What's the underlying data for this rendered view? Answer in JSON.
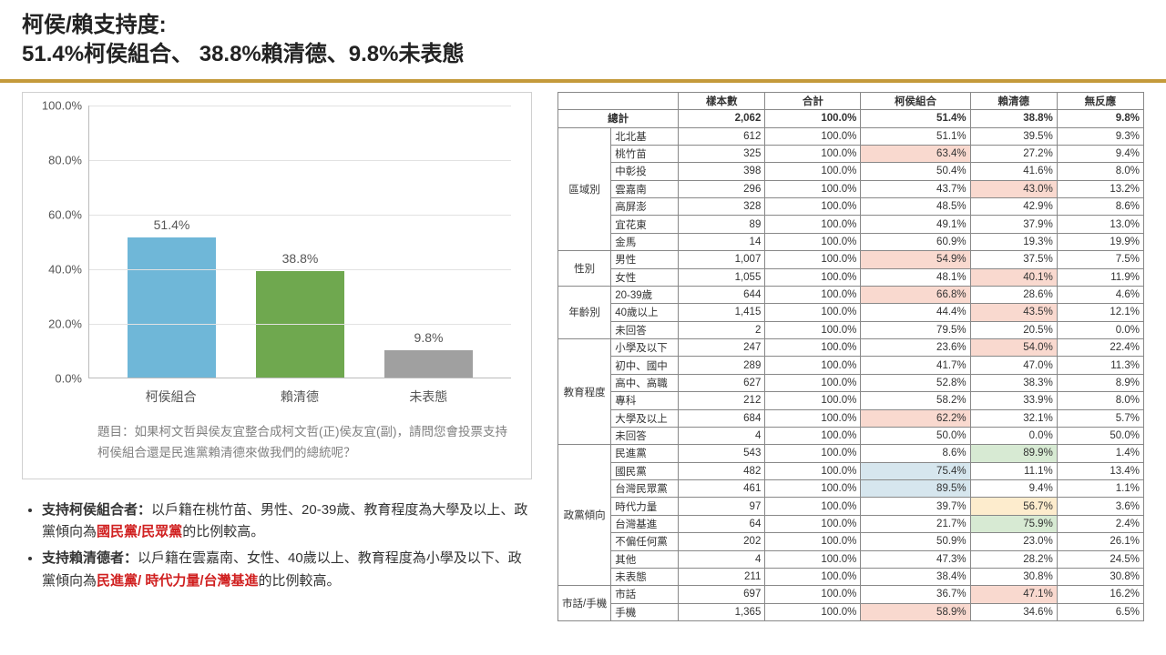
{
  "title_line1": "柯侯/賴支持度:",
  "title_line2": "51.4%柯侯組合、 38.8%賴清德、9.8%未表態",
  "chart": {
    "type": "bar",
    "ymax": 100,
    "ytick_step": 20,
    "ytick_suffix": ".0%",
    "categories": [
      "柯侯組合",
      "賴清德",
      "未表態"
    ],
    "values": [
      51.4,
      38.8,
      9.8
    ],
    "value_labels": [
      "51.4%",
      "38.8%",
      "9.8%"
    ],
    "bar_colors": [
      "#6fb7d8",
      "#6fa84f",
      "#a0a0a0"
    ],
    "grid_color": "#e2e2e2",
    "axis_color": "#bbbbbb",
    "label_color": "#555555"
  },
  "question": {
    "prefix": "題目：",
    "text": "如果柯文哲與侯友宜整合成柯文哲(正)侯友宜(副)，請問您會投票支持柯侯組合還是民進黨賴清德來做我們的總統呢？"
  },
  "bullets": [
    {
      "lead": "支持柯侯組合者：",
      "pre": "以戶籍在桃竹苗、男性、20-39歲、教育程度為大學及以上、政黨傾向為",
      "highlight": "國民黨/民眾黨",
      "post": "的比例較高。"
    },
    {
      "lead": "支持賴清德者：",
      "pre": "以戶籍在雲嘉南、女性、40歲以上、教育程度為小學及以下、政黨傾向為",
      "highlight": "民進黨/ 時代力量/台灣基進",
      "post": "的比例較高。"
    }
  ],
  "table": {
    "headers": [
      "",
      "",
      "樣本數",
      "合計",
      "柯侯組合",
      "賴清德",
      "無反應"
    ],
    "total_label": "總計",
    "highlight_colors": {
      "pink": "#f9d9cf",
      "blue": "#d6e6ee",
      "green": "#d7ead3",
      "yellow": "#fdeccd"
    },
    "total_row": {
      "n": "2,062",
      "tot": "100.0%",
      "a": "51.4%",
      "b": "38.8%",
      "c": "9.8%"
    },
    "groups": [
      {
        "name": "區域別",
        "rows": [
          {
            "lbl": "北北基",
            "n": "612",
            "tot": "100.0%",
            "a": "51.1%",
            "b": "39.5%",
            "c": "9.3%"
          },
          {
            "lbl": "桃竹苗",
            "n": "325",
            "tot": "100.0%",
            "a": "63.4%",
            "ah": "pink",
            "b": "27.2%",
            "c": "9.4%"
          },
          {
            "lbl": "中彰投",
            "n": "398",
            "tot": "100.0%",
            "a": "50.4%",
            "b": "41.6%",
            "c": "8.0%"
          },
          {
            "lbl": "雲嘉南",
            "n": "296",
            "tot": "100.0%",
            "a": "43.7%",
            "b": "43.0%",
            "bh": "pink",
            "c": "13.2%"
          },
          {
            "lbl": "高屏澎",
            "n": "328",
            "tot": "100.0%",
            "a": "48.5%",
            "b": "42.9%",
            "c": "8.6%"
          },
          {
            "lbl": "宜花東",
            "n": "89",
            "tot": "100.0%",
            "a": "49.1%",
            "b": "37.9%",
            "c": "13.0%"
          },
          {
            "lbl": "金馬",
            "n": "14",
            "tot": "100.0%",
            "a": "60.9%",
            "b": "19.3%",
            "c": "19.9%"
          }
        ]
      },
      {
        "name": "性別",
        "rows": [
          {
            "lbl": "男性",
            "n": "1,007",
            "tot": "100.0%",
            "a": "54.9%",
            "ah": "pink",
            "b": "37.5%",
            "c": "7.5%"
          },
          {
            "lbl": "女性",
            "n": "1,055",
            "tot": "100.0%",
            "a": "48.1%",
            "b": "40.1%",
            "bh": "pink",
            "c": "11.9%"
          }
        ]
      },
      {
        "name": "年齡別",
        "rows": [
          {
            "lbl": "20-39歲",
            "n": "644",
            "tot": "100.0%",
            "a": "66.8%",
            "ah": "pink",
            "b": "28.6%",
            "c": "4.6%"
          },
          {
            "lbl": "40歲以上",
            "n": "1,415",
            "tot": "100.0%",
            "a": "44.4%",
            "b": "43.5%",
            "bh": "pink",
            "c": "12.1%"
          },
          {
            "lbl": "未回答",
            "n": "2",
            "tot": "100.0%",
            "a": "79.5%",
            "b": "20.5%",
            "c": "0.0%"
          }
        ]
      },
      {
        "name": "教育程度",
        "rows": [
          {
            "lbl": "小學及以下",
            "n": "247",
            "tot": "100.0%",
            "a": "23.6%",
            "b": "54.0%",
            "bh": "pink",
            "c": "22.4%"
          },
          {
            "lbl": "初中、國中",
            "n": "289",
            "tot": "100.0%",
            "a": "41.7%",
            "b": "47.0%",
            "c": "11.3%"
          },
          {
            "lbl": "高中、高職",
            "n": "627",
            "tot": "100.0%",
            "a": "52.8%",
            "b": "38.3%",
            "c": "8.9%"
          },
          {
            "lbl": "專科",
            "n": "212",
            "tot": "100.0%",
            "a": "58.2%",
            "b": "33.9%",
            "c": "8.0%"
          },
          {
            "lbl": "大學及以上",
            "n": "684",
            "tot": "100.0%",
            "a": "62.2%",
            "ah": "pink",
            "b": "32.1%",
            "c": "5.7%"
          },
          {
            "lbl": "未回答",
            "n": "4",
            "tot": "100.0%",
            "a": "50.0%",
            "b": "0.0%",
            "c": "50.0%"
          }
        ]
      },
      {
        "name": "政黨傾向",
        "rows": [
          {
            "lbl": "民進黨",
            "n": "543",
            "tot": "100.0%",
            "a": "8.6%",
            "b": "89.9%",
            "bh": "green",
            "c": "1.4%"
          },
          {
            "lbl": "國民黨",
            "n": "482",
            "tot": "100.0%",
            "a": "75.4%",
            "ah": "blue",
            "b": "11.1%",
            "c": "13.4%"
          },
          {
            "lbl": "台灣民眾黨",
            "n": "461",
            "tot": "100.0%",
            "a": "89.5%",
            "ah": "blue",
            "b": "9.4%",
            "c": "1.1%"
          },
          {
            "lbl": "時代力量",
            "n": "97",
            "tot": "100.0%",
            "a": "39.7%",
            "b": "56.7%",
            "bh": "yellow",
            "c": "3.6%"
          },
          {
            "lbl": "台灣基進",
            "n": "64",
            "tot": "100.0%",
            "a": "21.7%",
            "b": "75.9%",
            "bh": "green",
            "c": "2.4%"
          },
          {
            "lbl": "不偏任何黨",
            "n": "202",
            "tot": "100.0%",
            "a": "50.9%",
            "b": "23.0%",
            "c": "26.1%"
          },
          {
            "lbl": "其他",
            "n": "4",
            "tot": "100.0%",
            "a": "47.3%",
            "b": "28.2%",
            "c": "24.5%"
          },
          {
            "lbl": "未表態",
            "n": "211",
            "tot": "100.0%",
            "a": "38.4%",
            "b": "30.8%",
            "c": "30.8%"
          }
        ]
      },
      {
        "name": "市話/手機",
        "rows": [
          {
            "lbl": "市話",
            "n": "697",
            "tot": "100.0%",
            "a": "36.7%",
            "b": "47.1%",
            "bh": "pink",
            "c": "16.2%"
          },
          {
            "lbl": "手機",
            "n": "1,365",
            "tot": "100.0%",
            "a": "58.9%",
            "ah": "pink",
            "b": "34.6%",
            "c": "6.5%"
          }
        ]
      }
    ]
  }
}
